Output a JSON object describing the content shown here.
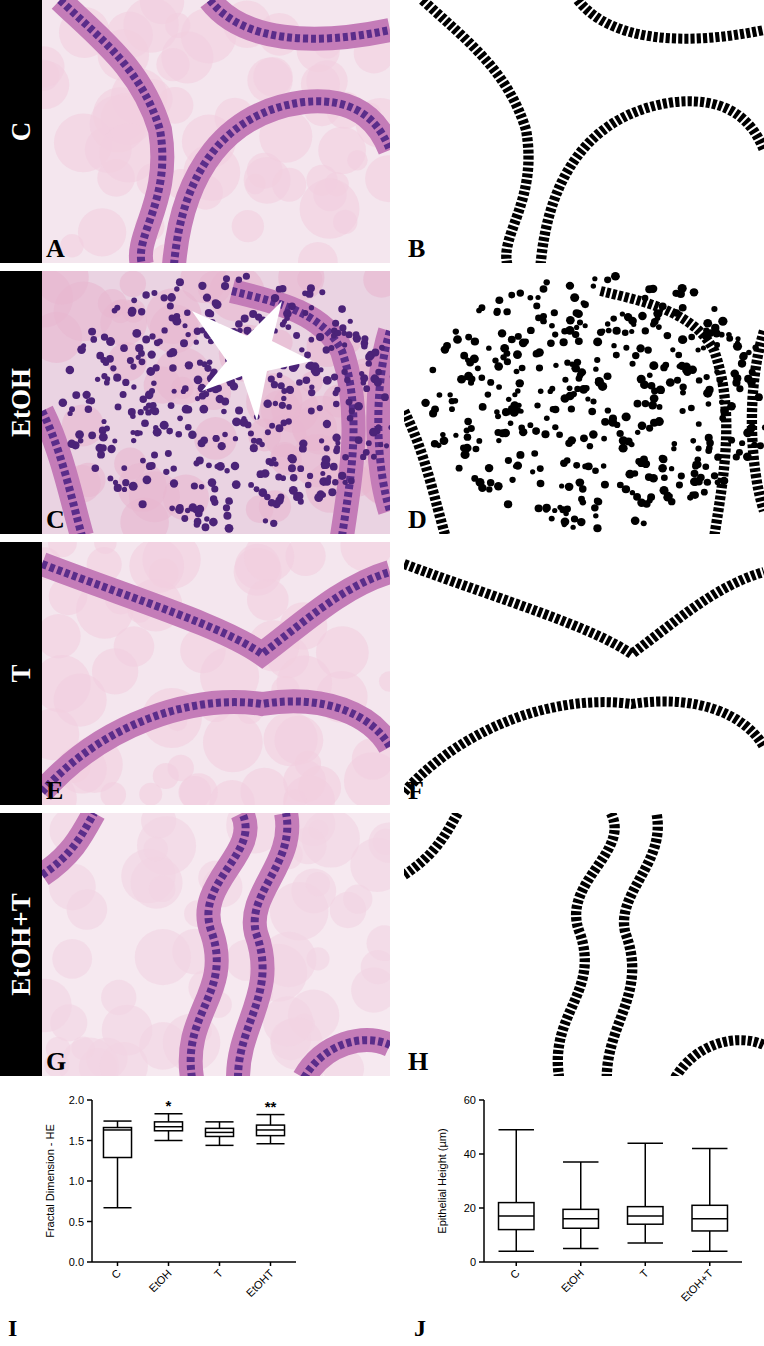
{
  "panels": [
    {
      "row_label": "C",
      "letters": [
        "A",
        "B"
      ]
    },
    {
      "row_label": "EtOH",
      "letters": [
        "C",
        "D"
      ]
    },
    {
      "row_label": "T",
      "letters": [
        "E",
        "F"
      ]
    },
    {
      "row_label": "EtOH+T",
      "letters": [
        "G",
        "H"
      ]
    }
  ],
  "chart_data": [
    {
      "type": "box",
      "panel_label": "I",
      "y_label": "Fractal Dimension - HE",
      "categories": [
        "C",
        "EtOH",
        "T",
        "EtOHT"
      ],
      "boxes": [
        {
          "min": 0.67,
          "q1": 1.29,
          "median": 1.63,
          "q3": 1.66,
          "max": 1.74
        },
        {
          "min": 1.5,
          "q1": 1.62,
          "median": 1.67,
          "q3": 1.73,
          "max": 1.83
        },
        {
          "min": 1.44,
          "q1": 1.55,
          "median": 1.6,
          "q3": 1.65,
          "max": 1.73
        },
        {
          "min": 1.46,
          "q1": 1.56,
          "median": 1.63,
          "q3": 1.69,
          "max": 1.82
        }
      ],
      "annotations": [
        null,
        "*",
        null,
        "**"
      ],
      "ylim": [
        0,
        2
      ],
      "yticks": [
        {
          "value": 0,
          "label": "0.0"
        },
        {
          "value": 0.5,
          "label": "0.5"
        },
        {
          "value": 1,
          "label": "1.0"
        },
        {
          "value": 1.5,
          "label": "1.5"
        },
        {
          "value": 2,
          "label": "2.0"
        }
      ],
      "color": "#000000"
    },
    {
      "type": "box",
      "panel_label": "J",
      "y_label": "Epithelial Height (µm)",
      "categories": [
        "C",
        "EtOH",
        "T",
        "EtOH+T"
      ],
      "boxes": [
        {
          "min": 4,
          "q1": 12,
          "median": 17,
          "q3": 22,
          "max": 49
        },
        {
          "min": 5,
          "q1": 12.5,
          "median": 16,
          "q3": 19.5,
          "max": 37
        },
        {
          "min": 7,
          "q1": 14,
          "median": 17,
          "q3": 20.5,
          "max": 44
        },
        {
          "min": 4,
          "q1": 11.5,
          "median": 16,
          "q3": 21,
          "max": 42
        }
      ],
      "ylim": [
        0,
        60
      ],
      "yticks": [
        0,
        20,
        40,
        60
      ],
      "color": "#000000"
    }
  ]
}
